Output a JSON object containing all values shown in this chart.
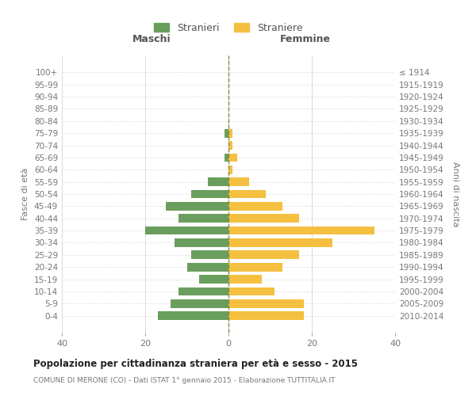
{
  "age_groups": [
    "100+",
    "95-99",
    "90-94",
    "85-89",
    "80-84",
    "75-79",
    "70-74",
    "65-69",
    "60-64",
    "55-59",
    "50-54",
    "45-49",
    "40-44",
    "35-39",
    "30-34",
    "25-29",
    "20-24",
    "15-19",
    "10-14",
    "5-9",
    "0-4"
  ],
  "birth_years": [
    "≤ 1914",
    "1915-1919",
    "1920-1924",
    "1925-1929",
    "1930-1934",
    "1935-1939",
    "1940-1944",
    "1945-1949",
    "1950-1954",
    "1955-1959",
    "1960-1964",
    "1965-1969",
    "1970-1974",
    "1975-1979",
    "1980-1984",
    "1985-1989",
    "1990-1994",
    "1995-1999",
    "2000-2004",
    "2005-2009",
    "2010-2014"
  ],
  "maschi": [
    0,
    0,
    0,
    0,
    0,
    1,
    0,
    1,
    0,
    5,
    9,
    15,
    12,
    20,
    13,
    9,
    10,
    7,
    12,
    14,
    17
  ],
  "femmine": [
    0,
    0,
    0,
    0,
    0,
    1,
    1,
    2,
    1,
    5,
    9,
    13,
    17,
    35,
    25,
    17,
    13,
    8,
    11,
    18,
    18
  ],
  "color_maschi": "#6a9e5e",
  "color_femmine": "#f5c040",
  "color_grid": "#cccccc",
  "color_dashed_line": "#888844",
  "title": "Popolazione per cittadinanza straniera per età e sesso - 2015",
  "subtitle": "COMUNE DI MERONE (CO) - Dati ISTAT 1° gennaio 2015 - Elaborazione TUTTITALIA.IT",
  "xlabel_left": "Maschi",
  "xlabel_right": "Femmine",
  "ylabel_left": "Fasce di età",
  "ylabel_right": "Anni di nascita",
  "legend_maschi": "Stranieri",
  "legend_femmine": "Straniere",
  "xlim": 40,
  "background_color": "#ffffff"
}
